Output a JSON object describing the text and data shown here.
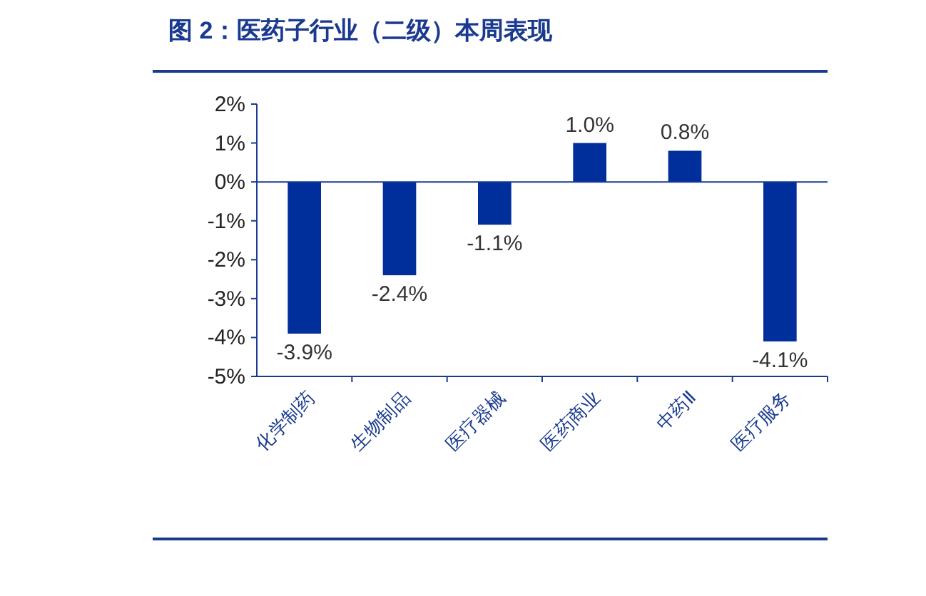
{
  "chart_data": {
    "type": "bar",
    "title": "图 2：医药子行业（二级）本周表现",
    "categories": [
      "化学制药",
      "生物制品",
      "医疗器械",
      "医药商业",
      "中药Ⅱ",
      "医疗服务"
    ],
    "values": [
      -3.9,
      -2.4,
      -1.1,
      1.0,
      0.8,
      -4.1
    ],
    "value_labels": [
      "-3.9%",
      "-2.4%",
      "-1.1%",
      "1.0%",
      "0.8%",
      "-4.1%"
    ],
    "color": "#002f9b",
    "ylim": [
      -5,
      2
    ],
    "yticks": [
      {
        "value": 2,
        "label": "2%"
      },
      {
        "value": 1,
        "label": "1%"
      },
      {
        "value": 0,
        "label": "0%"
      },
      {
        "value": -1,
        "label": "-1%"
      },
      {
        "value": -2,
        "label": "-2%"
      },
      {
        "value": -3,
        "label": "-3%"
      },
      {
        "value": -4,
        "label": "-4%"
      },
      {
        "value": -5,
        "label": "-5%"
      }
    ],
    "grid": false,
    "ref_lines": [
      {
        "axis": "y",
        "value": 0,
        "color": "#1a3a8f"
      }
    ]
  }
}
